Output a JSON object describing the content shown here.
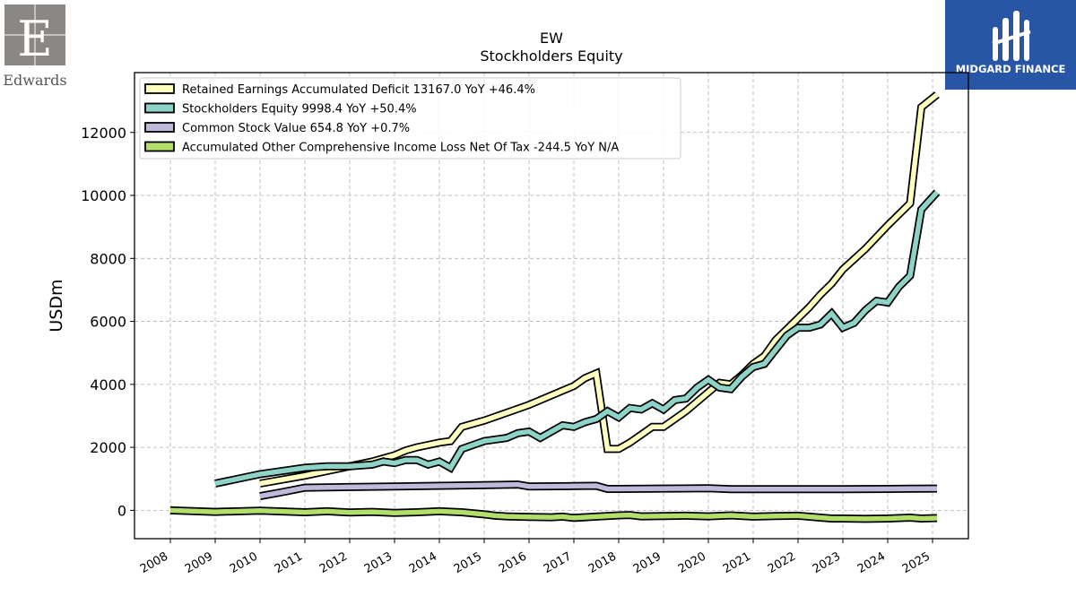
{
  "company_logo": {
    "name": "Edwards"
  },
  "brand_logo": {
    "name": "MIDGARD FINANCE",
    "color": "#2855a6"
  },
  "chart_data": {
    "type": "line",
    "title": "EW",
    "subtitle": "Stockholders  Equity",
    "xlabel": "",
    "ylabel": "USDm",
    "xlim": [
      2007.2,
      2025.8
    ],
    "ylim": [
      -900,
      13900
    ],
    "x_ticks": [
      "2008",
      "2009",
      "2010",
      "2011",
      "2012",
      "2013",
      "2014",
      "2015",
      "2016",
      "2017",
      "2018",
      "2019",
      "2020",
      "2021",
      "2022",
      "2023",
      "2024",
      "2025"
    ],
    "y_ticks": [
      0,
      2000,
      4000,
      6000,
      8000,
      10000,
      12000
    ],
    "grid": true,
    "legend_position": "top-left",
    "series": [
      {
        "name": "Retained Earnings Accumulated Deficit",
        "legend_label": "Retained Earnings Accumulated Deficit  13167.0 YoY +46.4%",
        "color": "#ffffbf",
        "points": [
          [
            2010.0,
            850
          ],
          [
            2011.0,
            1100
          ],
          [
            2012.0,
            1400
          ],
          [
            2012.5,
            1550
          ],
          [
            2013.0,
            1750
          ],
          [
            2013.25,
            1900
          ],
          [
            2013.5,
            2000
          ],
          [
            2014.0,
            2150
          ],
          [
            2014.25,
            2200
          ],
          [
            2014.5,
            2650
          ],
          [
            2015.0,
            2850
          ],
          [
            2015.5,
            3100
          ],
          [
            2016.0,
            3350
          ],
          [
            2016.5,
            3650
          ],
          [
            2017.0,
            3950
          ],
          [
            2017.25,
            4200
          ],
          [
            2017.5,
            4350
          ],
          [
            2017.75,
            1950
          ],
          [
            2018.0,
            1950
          ],
          [
            2018.25,
            2150
          ],
          [
            2018.5,
            2400
          ],
          [
            2018.75,
            2650
          ],
          [
            2019.0,
            2650
          ],
          [
            2019.5,
            3150
          ],
          [
            2020.0,
            3750
          ],
          [
            2020.25,
            4050
          ],
          [
            2020.5,
            4000
          ],
          [
            2020.75,
            4300
          ],
          [
            2021.0,
            4650
          ],
          [
            2021.25,
            4900
          ],
          [
            2021.5,
            5400
          ],
          [
            2021.75,
            5750
          ],
          [
            2022.0,
            6100
          ],
          [
            2022.25,
            6450
          ],
          [
            2022.5,
            6850
          ],
          [
            2022.75,
            7200
          ],
          [
            2023.0,
            7650
          ],
          [
            2023.5,
            8300
          ],
          [
            2024.0,
            9050
          ],
          [
            2024.5,
            9750
          ],
          [
            2024.75,
            12800
          ],
          [
            2025.1,
            13200
          ]
        ]
      },
      {
        "name": "Stockholders Equity",
        "legend_label": "Stockholders Equity  9998.4 YoY +50.4%",
        "color": "#8dd3c7",
        "points": [
          [
            2009.0,
            850
          ],
          [
            2010.0,
            1150
          ],
          [
            2011.0,
            1350
          ],
          [
            2011.5,
            1400
          ],
          [
            2012.0,
            1400
          ],
          [
            2012.5,
            1450
          ],
          [
            2012.75,
            1550
          ],
          [
            2013.0,
            1500
          ],
          [
            2013.25,
            1600
          ],
          [
            2013.5,
            1600
          ],
          [
            2013.75,
            1450
          ],
          [
            2014.0,
            1550
          ],
          [
            2014.25,
            1350
          ],
          [
            2014.5,
            1950
          ],
          [
            2015.0,
            2200
          ],
          [
            2015.5,
            2300
          ],
          [
            2015.75,
            2450
          ],
          [
            2016.0,
            2500
          ],
          [
            2016.25,
            2300
          ],
          [
            2016.5,
            2500
          ],
          [
            2016.75,
            2700
          ],
          [
            2017.0,
            2650
          ],
          [
            2017.25,
            2800
          ],
          [
            2017.5,
            2900
          ],
          [
            2017.75,
            3150
          ],
          [
            2018.0,
            2950
          ],
          [
            2018.25,
            3250
          ],
          [
            2018.5,
            3200
          ],
          [
            2018.75,
            3400
          ],
          [
            2019.0,
            3200
          ],
          [
            2019.25,
            3500
          ],
          [
            2019.5,
            3550
          ],
          [
            2019.75,
            3900
          ],
          [
            2020.0,
            4150
          ],
          [
            2020.25,
            3900
          ],
          [
            2020.5,
            3850
          ],
          [
            2020.75,
            4250
          ],
          [
            2021.0,
            4550
          ],
          [
            2021.25,
            4650
          ],
          [
            2021.5,
            5100
          ],
          [
            2021.75,
            5550
          ],
          [
            2022.0,
            5800
          ],
          [
            2022.25,
            5800
          ],
          [
            2022.5,
            5900
          ],
          [
            2022.75,
            6250
          ],
          [
            2023.0,
            5800
          ],
          [
            2023.25,
            5950
          ],
          [
            2023.5,
            6350
          ],
          [
            2023.75,
            6650
          ],
          [
            2024.0,
            6600
          ],
          [
            2024.25,
            7100
          ],
          [
            2024.5,
            7450
          ],
          [
            2024.75,
            9550
          ],
          [
            2025.1,
            10100
          ]
        ]
      },
      {
        "name": "Common Stock Value",
        "legend_label": "Common Stock Value  654.8 YoY +0.7%",
        "color": "#bebada",
        "points": [
          [
            2010.0,
            450
          ],
          [
            2010.5,
            580
          ],
          [
            2011.0,
            720
          ],
          [
            2012.0,
            740
          ],
          [
            2013.0,
            760
          ],
          [
            2014.0,
            780
          ],
          [
            2015.0,
            800
          ],
          [
            2015.75,
            820
          ],
          [
            2016.0,
            760
          ],
          [
            2017.0,
            770
          ],
          [
            2017.5,
            780
          ],
          [
            2017.75,
            680
          ],
          [
            2018.0,
            680
          ],
          [
            2019.0,
            690
          ],
          [
            2020.0,
            700
          ],
          [
            2020.5,
            670
          ],
          [
            2021.0,
            670
          ],
          [
            2022.0,
            670
          ],
          [
            2023.0,
            670
          ],
          [
            2024.0,
            680
          ],
          [
            2025.1,
            690
          ]
        ]
      },
      {
        "name": "Accumulated Other Comprehensive Income Loss Net Of Tax",
        "legend_label": "Accumulated Other Comprehensive Income Loss Net Of Tax  -244.5 YoY N/A",
        "color": "#b3de69",
        "points": [
          [
            2008.0,
            0
          ],
          [
            2009.0,
            -50
          ],
          [
            2010.0,
            -10
          ],
          [
            2011.0,
            -60
          ],
          [
            2011.5,
            -30
          ],
          [
            2012.0,
            -70
          ],
          [
            2012.5,
            -50
          ],
          [
            2013.0,
            -80
          ],
          [
            2013.5,
            -60
          ],
          [
            2014.0,
            -30
          ],
          [
            2014.5,
            -60
          ],
          [
            2015.0,
            -130
          ],
          [
            2015.25,
            -170
          ],
          [
            2015.5,
            -190
          ],
          [
            2016.0,
            -210
          ],
          [
            2016.5,
            -220
          ],
          [
            2016.75,
            -200
          ],
          [
            2017.0,
            -240
          ],
          [
            2017.5,
            -200
          ],
          [
            2018.0,
            -160
          ],
          [
            2018.25,
            -150
          ],
          [
            2018.5,
            -190
          ],
          [
            2019.0,
            -180
          ],
          [
            2019.5,
            -170
          ],
          [
            2020.0,
            -190
          ],
          [
            2020.5,
            -160
          ],
          [
            2021.0,
            -200
          ],
          [
            2021.5,
            -180
          ],
          [
            2022.0,
            -170
          ],
          [
            2022.5,
            -230
          ],
          [
            2022.75,
            -260
          ],
          [
            2023.0,
            -260
          ],
          [
            2023.5,
            -270
          ],
          [
            2024.0,
            -260
          ],
          [
            2024.5,
            -230
          ],
          [
            2024.75,
            -260
          ],
          [
            2025.1,
            -245
          ]
        ]
      }
    ]
  }
}
